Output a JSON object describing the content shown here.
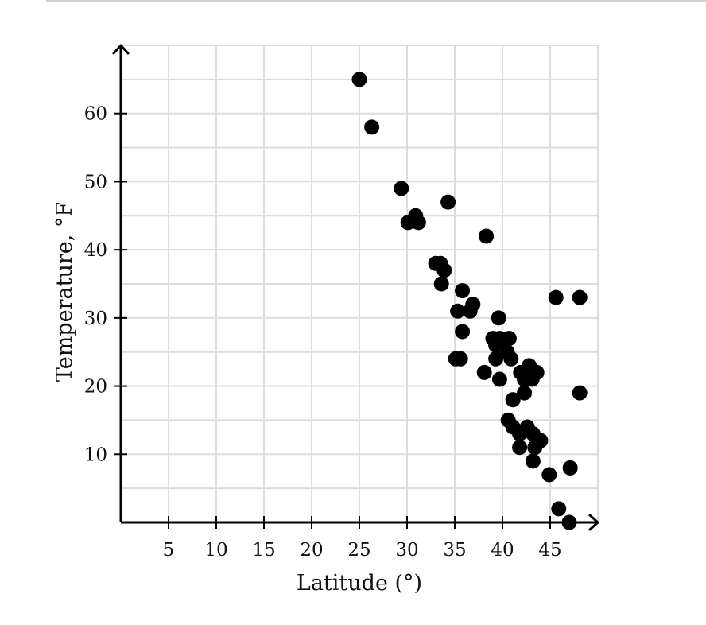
{
  "chart_data": {
    "type": "scatter",
    "title": "",
    "xlabel": "Latitude (°)",
    "ylabel": "Temperature, °F",
    "xlim": [
      0,
      50
    ],
    "ylim": [
      0,
      70
    ],
    "x_ticks": [
      5,
      10,
      15,
      20,
      25,
      30,
      35,
      40,
      45
    ],
    "y_ticks": [
      10,
      20,
      30,
      40,
      50,
      60
    ],
    "x_tick_labels": [
      "5",
      "10",
      "15",
      "20",
      "25",
      "30",
      "35",
      "40",
      "45"
    ],
    "y_tick_labels": [
      "10",
      "20",
      "30",
      "40",
      "50",
      "60"
    ],
    "grid": true,
    "point_color": "#000000",
    "points": [
      {
        "x": 25.0,
        "y": 65
      },
      {
        "x": 26.3,
        "y": 58
      },
      {
        "x": 29.4,
        "y": 49
      },
      {
        "x": 30.9,
        "y": 45
      },
      {
        "x": 30.1,
        "y": 44
      },
      {
        "x": 31.2,
        "y": 44
      },
      {
        "x": 34.3,
        "y": 47
      },
      {
        "x": 38.3,
        "y": 42
      },
      {
        "x": 33.0,
        "y": 38
      },
      {
        "x": 33.5,
        "y": 38
      },
      {
        "x": 33.9,
        "y": 37
      },
      {
        "x": 33.6,
        "y": 35
      },
      {
        "x": 35.8,
        "y": 34
      },
      {
        "x": 36.9,
        "y": 32
      },
      {
        "x": 35.3,
        "y": 31
      },
      {
        "x": 36.6,
        "y": 31
      },
      {
        "x": 39.6,
        "y": 30
      },
      {
        "x": 35.8,
        "y": 28
      },
      {
        "x": 39.0,
        "y": 27
      },
      {
        "x": 39.7,
        "y": 27
      },
      {
        "x": 40.7,
        "y": 27
      },
      {
        "x": 39.3,
        "y": 26
      },
      {
        "x": 40.0,
        "y": 26
      },
      {
        "x": 40.5,
        "y": 25
      },
      {
        "x": 39.3,
        "y": 24
      },
      {
        "x": 40.9,
        "y": 24
      },
      {
        "x": 35.1,
        "y": 24
      },
      {
        "x": 35.6,
        "y": 24
      },
      {
        "x": 38.1,
        "y": 22
      },
      {
        "x": 41.9,
        "y": 22
      },
      {
        "x": 42.8,
        "y": 23
      },
      {
        "x": 43.6,
        "y": 22
      },
      {
        "x": 42.3,
        "y": 21
      },
      {
        "x": 43.1,
        "y": 21
      },
      {
        "x": 39.7,
        "y": 21
      },
      {
        "x": 42.3,
        "y": 19
      },
      {
        "x": 41.1,
        "y": 18
      },
      {
        "x": 40.6,
        "y": 15
      },
      {
        "x": 41.1,
        "y": 14
      },
      {
        "x": 41.8,
        "y": 13
      },
      {
        "x": 42.6,
        "y": 14
      },
      {
        "x": 43.2,
        "y": 13
      },
      {
        "x": 44.0,
        "y": 12
      },
      {
        "x": 41.8,
        "y": 11
      },
      {
        "x": 43.4,
        "y": 11
      },
      {
        "x": 43.2,
        "y": 9
      },
      {
        "x": 44.9,
        "y": 7
      },
      {
        "x": 47.1,
        "y": 8
      },
      {
        "x": 45.6,
        "y": 33
      },
      {
        "x": 48.1,
        "y": 33
      },
      {
        "x": 48.1,
        "y": 19
      },
      {
        "x": 45.9,
        "y": 2
      },
      {
        "x": 47.0,
        "y": 0
      }
    ]
  }
}
